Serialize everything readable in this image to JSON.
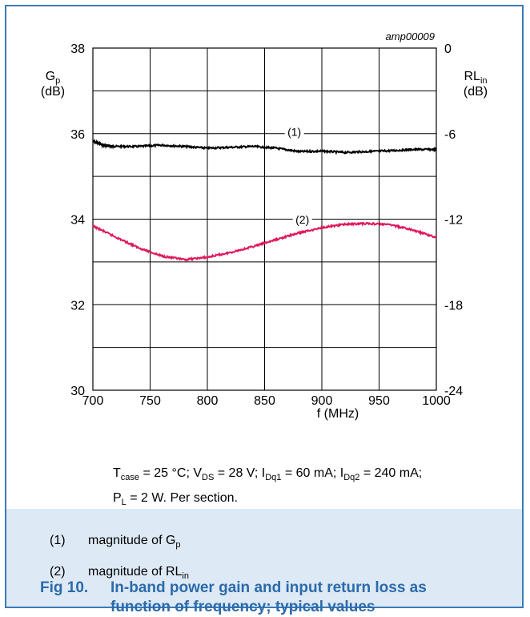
{
  "chart_data": {
    "type": "line",
    "id_label": "amp00009",
    "x_axis": {
      "label": "f (MHz)",
      "range": [
        700,
        1000
      ],
      "ticks": [
        "700",
        "750",
        "800",
        "850",
        "900",
        "950",
        "1000"
      ]
    },
    "y_left": {
      "label": "G",
      "label_sub": "p",
      "unit": "(dB)",
      "range": [
        30,
        38
      ],
      "ticks": [
        "30",
        "32",
        "34",
        "36",
        "38"
      ]
    },
    "y_right": {
      "label": "RL",
      "label_sub": "in",
      "unit": "(dB)",
      "range": [
        -24,
        0
      ],
      "ticks": [
        "-24",
        "-18",
        "-12",
        "-6",
        "0"
      ]
    },
    "grid": true,
    "series": [
      {
        "name": "(1)",
        "color": "#000000",
        "axis": "left",
        "x": [
          700,
          710,
          720,
          740,
          760,
          780,
          800,
          820,
          840,
          860,
          880,
          900,
          920,
          940,
          960,
          980,
          1000
        ],
        "y": [
          35.82,
          35.72,
          35.7,
          35.7,
          35.73,
          35.7,
          35.66,
          35.68,
          35.7,
          35.66,
          35.58,
          35.59,
          35.56,
          35.58,
          35.6,
          35.63,
          35.63
        ]
      },
      {
        "name": "(2)",
        "color": "#e0195a",
        "axis": "left",
        "x": [
          700,
          720,
          740,
          760,
          780,
          800,
          820,
          840,
          860,
          880,
          900,
          920,
          940,
          960,
          980,
          1000
        ],
        "y": [
          33.84,
          33.58,
          33.33,
          33.14,
          33.05,
          33.11,
          33.22,
          33.36,
          33.52,
          33.68,
          33.8,
          33.88,
          33.9,
          33.87,
          33.74,
          33.57
        ]
      }
    ]
  },
  "conditions": {
    "line1": [
      {
        "t": "T"
      },
      {
        "sub": "case"
      },
      {
        "t": " = 25 °C; V"
      },
      {
        "sub": "DS"
      },
      {
        "t": " = 28 V; I"
      },
      {
        "sub": "Dq1"
      },
      {
        "t": " = 60 mA; I"
      },
      {
        "sub": "Dq2"
      },
      {
        "t": " = 240 mA;"
      }
    ],
    "line2": [
      {
        "t": "P"
      },
      {
        "sub": "L"
      },
      {
        "t": " = 2 W. Per section."
      }
    ]
  },
  "notes": [
    {
      "num": "(1)",
      "text": "magnitude of G",
      "sub": "p"
    },
    {
      "num": "(2)",
      "text": "magnitude of RL",
      "sub": "in"
    }
  ],
  "caption": {
    "number": "Fig 10.",
    "line1": "In-band power gain and input return loss as",
    "line2": "function of frequency; typical values"
  }
}
